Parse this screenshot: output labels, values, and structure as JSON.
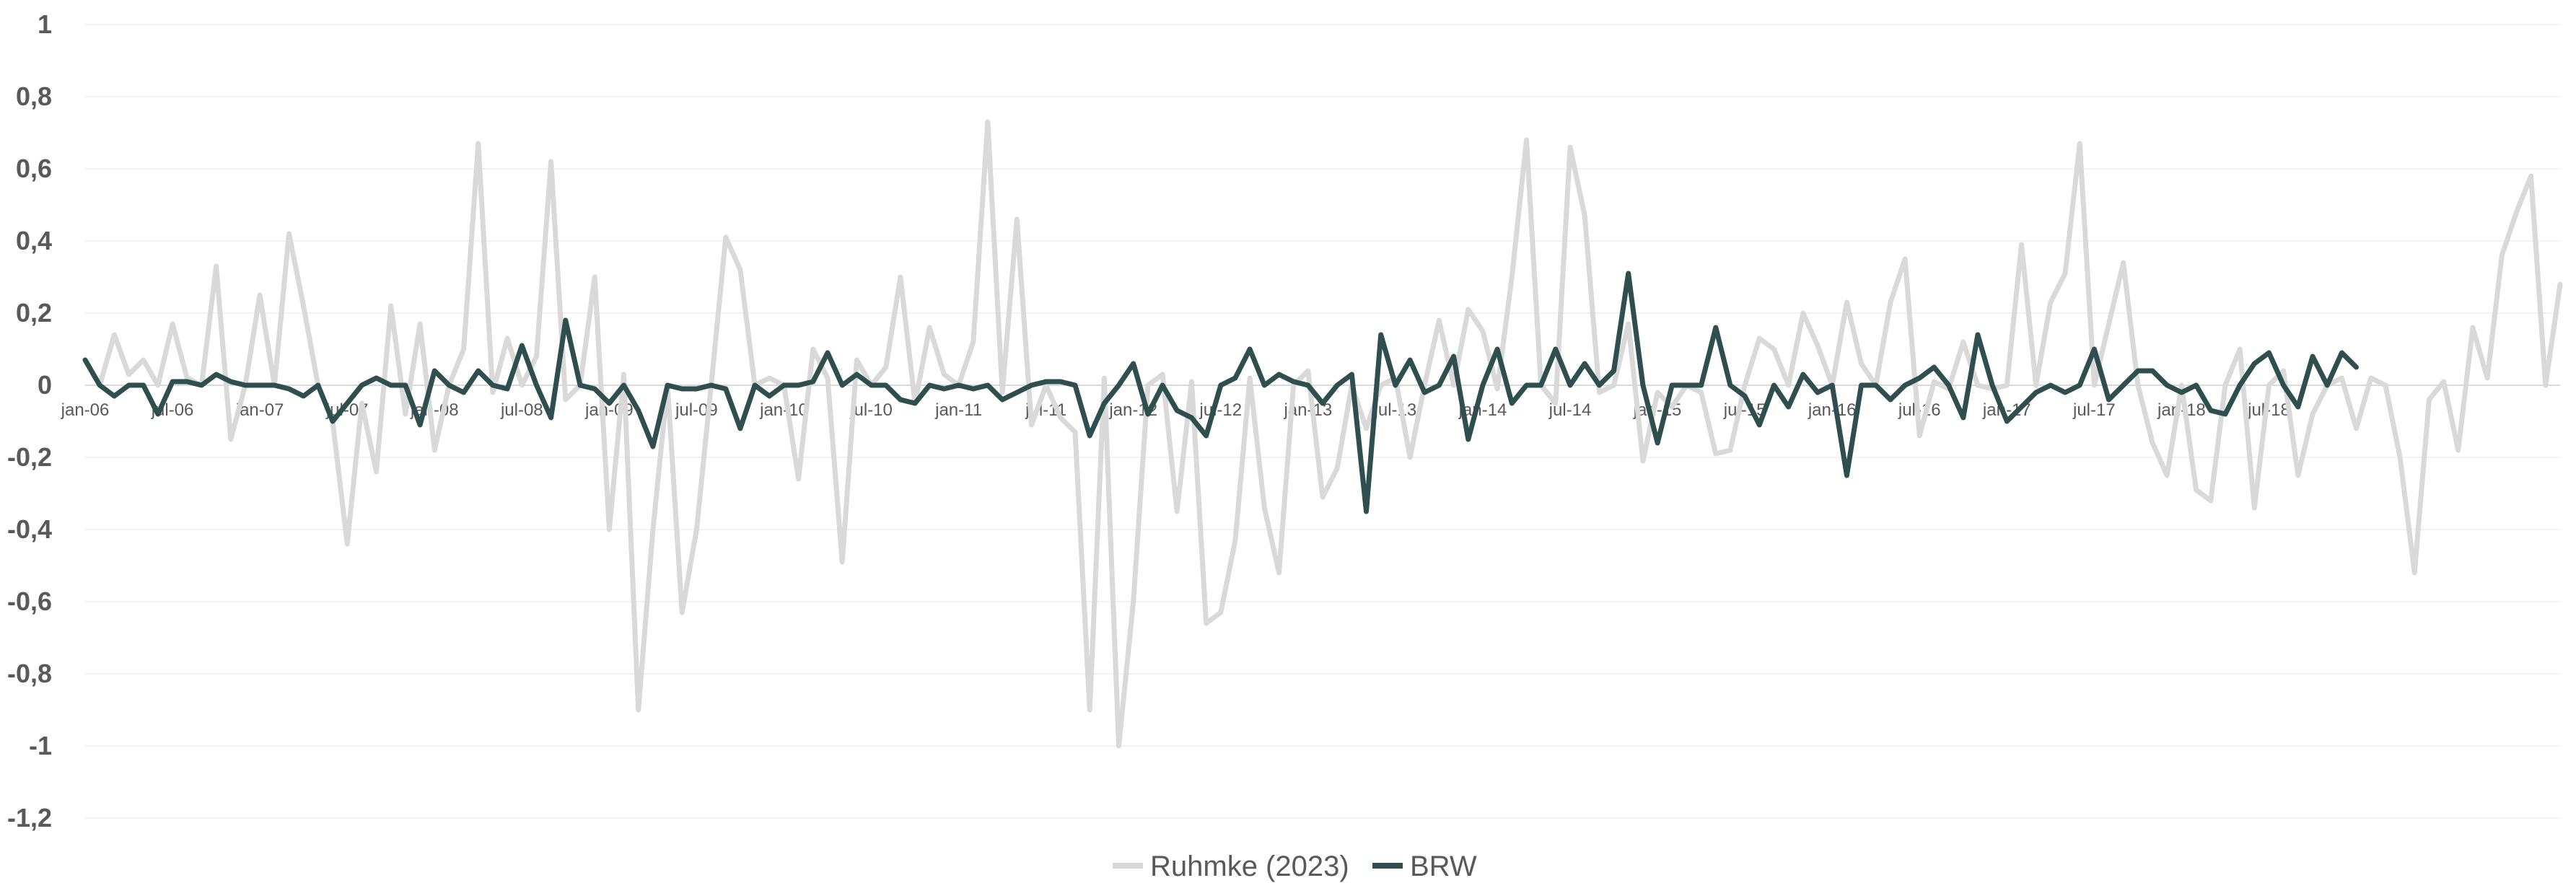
{
  "chart_data": {
    "type": "line",
    "title": "",
    "xlabel": "",
    "ylabel": "",
    "ylim": [
      -1.2,
      1
    ],
    "y_ticks": [
      1,
      0.8,
      0.6,
      0.4,
      0.2,
      0,
      -0.2,
      -0.4,
      -0.6,
      -0.8,
      -1,
      -1.2
    ],
    "y_tick_labels": [
      "1",
      "0,8",
      "0,6",
      "0,4",
      "0,2",
      "0",
      "-0,2",
      "-0,4",
      "-0,6",
      "-0,8",
      "-1",
      "-1,2"
    ],
    "x_start": "jan-06",
    "x_tick_labels": [
      "jan-06",
      "jul-06",
      "jan-07",
      "jul-07",
      "jan-08",
      "jul-08",
      "jan-09",
      "jul-09",
      "jan-10",
      "jul-10",
      "jan-11",
      "jul-11",
      "jan-12",
      "jul-12",
      "jan-13",
      "jul-13",
      "jan-14",
      "jul-14",
      "jan-15",
      "jul-15",
      "jan-16",
      "jul-16",
      "jan-17",
      "jul-17",
      "jan-18",
      "jul-18"
    ],
    "grid": true,
    "legend": "bottom",
    "series": [
      {
        "name": "Ruhmke (2023)",
        "color": "#d9d9d9",
        "values": [
          0.07,
          0.0,
          0.14,
          0.03,
          0.07,
          0.0,
          0.17,
          0.02,
          0.0,
          0.33,
          -0.15,
          0.0,
          0.25,
          0.0,
          0.42,
          0.22,
          0.0,
          -0.1,
          -0.44,
          -0.05,
          -0.24,
          0.22,
          -0.08,
          0.17,
          -0.18,
          0.0,
          0.1,
          0.67,
          -0.02,
          0.13,
          0.0,
          0.08,
          0.62,
          -0.04,
          0.0,
          0.3,
          -0.4,
          0.03,
          -0.9,
          -0.4,
          0.0,
          -0.63,
          -0.4,
          0.0,
          0.41,
          0.32,
          0.0,
          0.02,
          0.0,
          -0.26,
          0.1,
          0.02,
          -0.49,
          0.07,
          0.0,
          0.05,
          0.3,
          -0.05,
          0.16,
          0.03,
          0.0,
          0.12,
          0.73,
          -0.02,
          0.46,
          -0.11,
          0.0,
          -0.09,
          -0.13,
          -0.9,
          0.02,
          -1.0,
          -0.6,
          0.0,
          0.03,
          -0.35,
          0.01,
          -0.66,
          -0.63,
          -0.43,
          0.02,
          -0.34,
          -0.52,
          0.0,
          0.04,
          -0.31,
          -0.23,
          0.0,
          -0.12,
          0.0,
          0.02,
          -0.2,
          0.0,
          0.18,
          0.0,
          0.21,
          0.15,
          -0.01,
          0.3,
          0.68,
          0.0,
          -0.05,
          0.66,
          0.47,
          -0.02,
          0.0,
          0.17,
          -0.21,
          -0.02,
          -0.06,
          0.0,
          -0.02,
          -0.19,
          -0.18,
          0.0,
          0.13,
          0.1,
          0.0,
          0.2,
          0.11,
          0.0,
          0.23,
          0.06,
          0.0,
          0.23,
          0.35,
          -0.14,
          0.01,
          -0.01,
          0.12,
          0.0,
          -0.01,
          0.0,
          0.39,
          0.0,
          0.23,
          0.31,
          0.67,
          0.0,
          0.17,
          0.34,
          0.0,
          -0.16,
          -0.25,
          0.0,
          -0.29,
          -0.32,
          0.0,
          0.1,
          -0.34,
          0.0,
          0.04,
          -0.25,
          -0.08,
          0.0,
          0.02,
          -0.12,
          0.02,
          0.0,
          -0.2,
          -0.52,
          -0.04,
          0.01,
          -0.18,
          0.16,
          0.02,
          0.36,
          0.48,
          0.58,
          0.0,
          0.28
        ]
      },
      {
        "name": "BRW",
        "color": "#2f4f4f",
        "values": [
          0.07,
          0.0,
          -0.03,
          0.0,
          0.0,
          -0.08,
          0.01,
          0.01,
          0.0,
          0.03,
          0.01,
          0.0,
          0.0,
          0.0,
          -0.01,
          -0.03,
          0.0,
          -0.1,
          -0.05,
          0.0,
          0.02,
          0.0,
          0.0,
          -0.11,
          0.04,
          0.0,
          -0.02,
          0.04,
          0.0,
          -0.01,
          0.11,
          0.0,
          -0.09,
          0.18,
          0.0,
          -0.01,
          -0.05,
          0.0,
          -0.07,
          -0.17,
          0.0,
          -0.01,
          -0.01,
          0.0,
          -0.01,
          -0.12,
          0.0,
          -0.03,
          0.0,
          0.0,
          0.01,
          0.09,
          0.0,
          0.03,
          0.0,
          0.0,
          -0.04,
          -0.05,
          0.0,
          -0.01,
          0.0,
          -0.01,
          0.0,
          -0.04,
          -0.02,
          0.0,
          0.01,
          0.01,
          0.0,
          -0.14,
          -0.05,
          0.0,
          0.06,
          -0.08,
          0.0,
          -0.07,
          -0.09,
          -0.14,
          0.0,
          0.02,
          0.1,
          0.0,
          0.03,
          0.01,
          0.0,
          -0.05,
          0.0,
          0.03,
          -0.35,
          0.14,
          0.0,
          0.07,
          -0.02,
          0.0,
          0.08,
          -0.15,
          0.0,
          0.1,
          -0.05,
          0.0,
          0.0,
          0.1,
          0.0,
          0.06,
          0.0,
          0.04,
          0.31,
          0.0,
          -0.16,
          0.0,
          0.0,
          0.0,
          0.16,
          0.0,
          -0.03,
          -0.11,
          0.0,
          -0.06,
          0.03,
          -0.02,
          0.0,
          -0.25,
          0.0,
          0.0,
          -0.04,
          0.0,
          0.02,
          0.05,
          0.0,
          -0.09,
          0.14,
          0.0,
          -0.1,
          -0.06,
          -0.02,
          0.0,
          -0.02,
          0.0,
          0.1,
          -0.04,
          0.0,
          0.04,
          0.04,
          0.0,
          -0.02,
          0.0,
          -0.07,
          -0.08,
          0.0,
          0.06,
          0.09,
          0.0,
          -0.06,
          0.08,
          0.0,
          0.09,
          0.05
        ]
      }
    ]
  }
}
